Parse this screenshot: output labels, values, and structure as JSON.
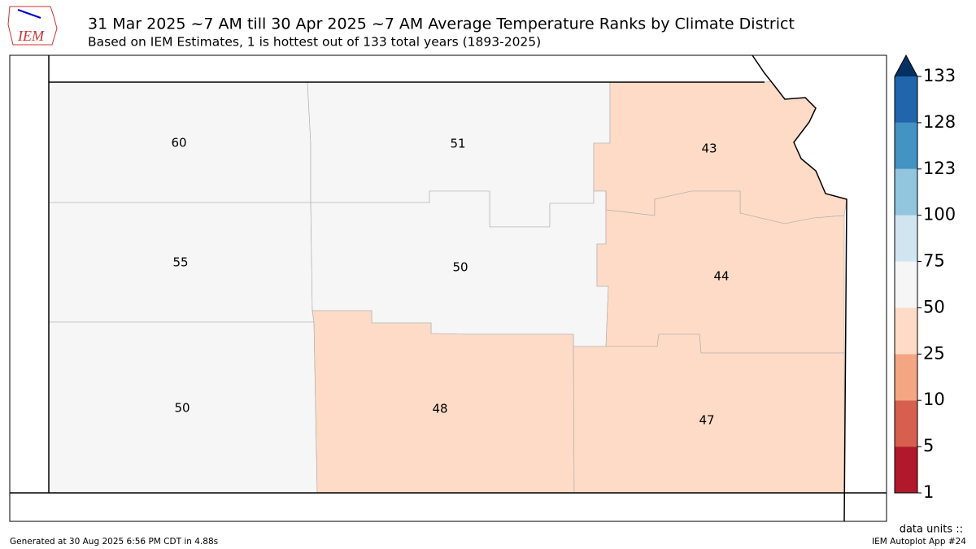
{
  "header": {
    "title": "31 Mar 2025 ~7 AM till 30 Apr 2025 ~7 AM Average Temperature Ranks by Climate District",
    "subtitle": "Based on IEM Estimates, 1 is hottest out of 133 total years (1893-2025)",
    "logo_text": "IEM"
  },
  "districts": [
    {
      "rank": 60
    },
    {
      "rank": 51
    },
    {
      "rank": 43
    },
    {
      "rank": 55
    },
    {
      "rank": 50
    },
    {
      "rank": 44
    },
    {
      "rank": 50
    },
    {
      "rank": 48
    },
    {
      "rank": 47
    }
  ],
  "colorbar": {
    "ticks": [
      1,
      5,
      10,
      25,
      50,
      75,
      100,
      123,
      128,
      133
    ],
    "colors": [
      "#b2182b",
      "#d6604d",
      "#f4a582",
      "#fddbc7",
      "#f5f6f5",
      "#d1e5f0",
      "#92c5de",
      "#4393c3",
      "#2166ac"
    ],
    "extend_color": "#053061"
  },
  "footer": {
    "generated": "Generated at 30 Aug 2025 6:56 PM CDT in 4.88s",
    "units": "data units ::",
    "app": "IEM Autoplot App #24"
  }
}
